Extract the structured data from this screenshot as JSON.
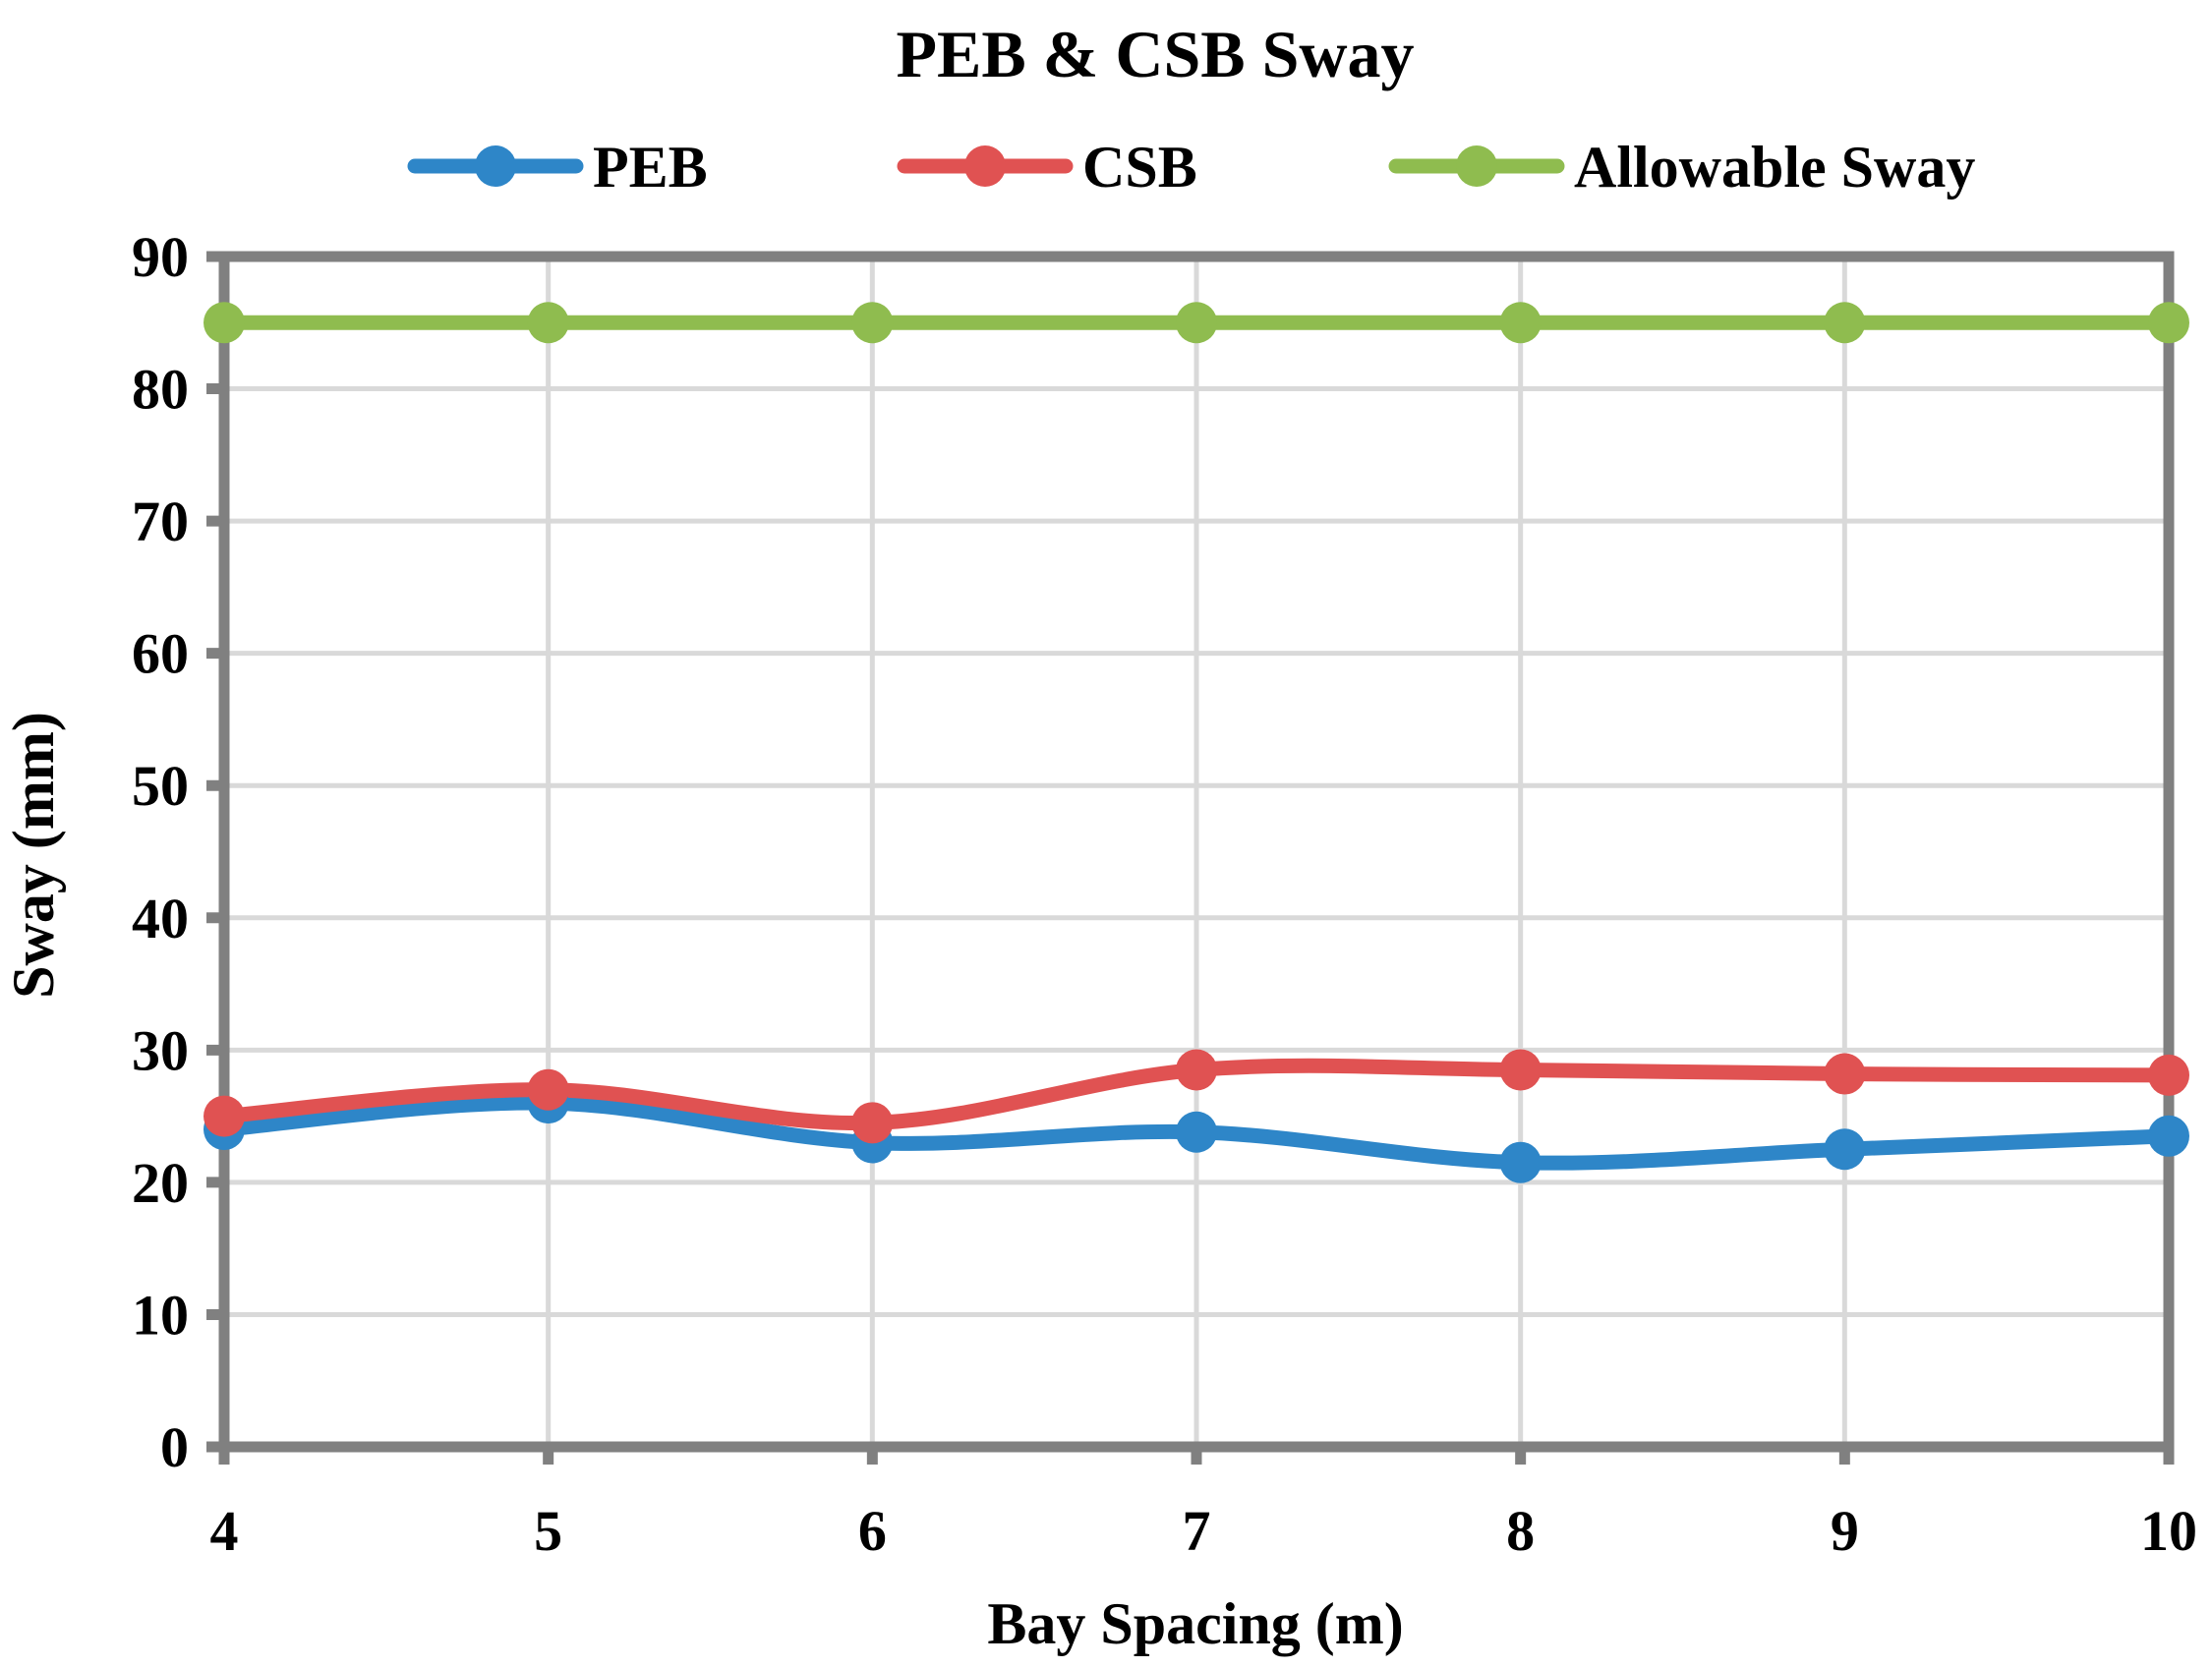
{
  "chart_data": {
    "type": "line",
    "title": "PEB & CSB Sway",
    "xlabel": "Bay Spacing (m)",
    "ylabel": "Sway (mm)",
    "x": [
      4,
      5,
      6,
      7,
      8,
      9,
      10
    ],
    "xlim": [
      4,
      10
    ],
    "ylim": [
      0,
      90
    ],
    "yticks": [
      0,
      10,
      20,
      30,
      40,
      50,
      60,
      70,
      80,
      90
    ],
    "grid": true,
    "legend_position": "top",
    "series": [
      {
        "name": "PEB",
        "color": "#2e86c8",
        "values": [
          24,
          26,
          23,
          23.8,
          21.5,
          22.5,
          23.5
        ]
      },
      {
        "name": "CSB",
        "color": "#e05252",
        "values": [
          25,
          27,
          24.5,
          28.5,
          28.5,
          28.2,
          28.1
        ]
      },
      {
        "name": "Allowable Sway",
        "color": "#8fbc4f",
        "values": [
          85,
          85,
          85,
          85,
          85,
          85,
          85
        ]
      }
    ]
  }
}
